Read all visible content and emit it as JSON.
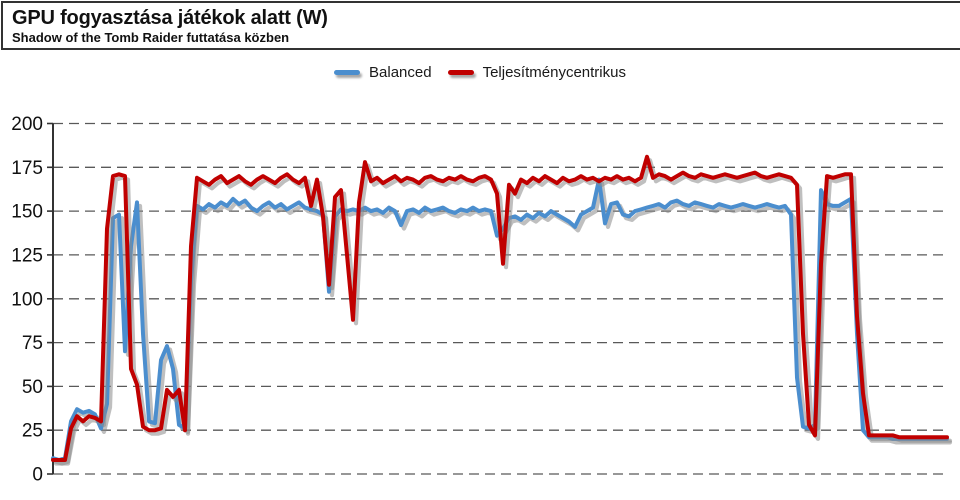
{
  "header": {
    "title": "GPU fogyasztása játékok alatt (W)",
    "subtitle": "Shadow of the Tomb Raider futtatása közben"
  },
  "legend": {
    "items": [
      {
        "label": "Balanced",
        "color": "#4B8ECE"
      },
      {
        "label": "Teljesítménycentrikus",
        "color": "#C00000"
      }
    ]
  },
  "colors": {
    "balanced": "#4B8ECE",
    "performance": "#C00000",
    "gridline": "#595959",
    "axis": "#333333",
    "shadow": "#8a8a8a"
  },
  "chart_data": {
    "type": "line",
    "title": "GPU fogyasztása játékok alatt (W)",
    "subtitle": "Shadow of the Tomb Raider futtatása közben",
    "xlabel": "",
    "ylabel": "",
    "ylim": [
      0,
      200
    ],
    "yticks": [
      0,
      25,
      50,
      75,
      100,
      125,
      150,
      175,
      200
    ],
    "xticks_visible": false,
    "grid": "horizontal-dashed",
    "legend_position": "top-center",
    "series": [
      {
        "name": "Balanced",
        "color": "#4B8ECE",
        "values": [
          9,
          8,
          9,
          30,
          37,
          35,
          36,
          34,
          26,
          40,
          146,
          148,
          70,
          130,
          155,
          80,
          30,
          29,
          65,
          73,
          60,
          28,
          26,
          110,
          153,
          151,
          154,
          152,
          155,
          153,
          157,
          154,
          156,
          152,
          150,
          153,
          155,
          152,
          154,
          151,
          153,
          155,
          152,
          151,
          150,
          148,
          104,
          147,
          151,
          150,
          151,
          150,
          152,
          150,
          151,
          149,
          152,
          150,
          142,
          150,
          151,
          149,
          152,
          150,
          151,
          152,
          150,
          149,
          151,
          150,
          152,
          150,
          151,
          150,
          136,
          140,
          146,
          147,
          145,
          148,
          146,
          149,
          147,
          150,
          148,
          146,
          144,
          141,
          148,
          150,
          152,
          168,
          143,
          154,
          155,
          148,
          147,
          150,
          151,
          152,
          153,
          154,
          152,
          155,
          156,
          154,
          153,
          155,
          154,
          153,
          152,
          154,
          153,
          152,
          153,
          154,
          153,
          152,
          153,
          154,
          153,
          152,
          153,
          148,
          55,
          27,
          26,
          28,
          162,
          154,
          153,
          153,
          155,
          157,
          80,
          25,
          21,
          21,
          21,
          21,
          20,
          20,
          20,
          20,
          20,
          20,
          20,
          20,
          20,
          20
        ]
      },
      {
        "name": "Teljesítménycentrikus",
        "color": "#C00000",
        "values": [
          8,
          8,
          8,
          26,
          33,
          30,
          33,
          32,
          30,
          140,
          170,
          171,
          170,
          60,
          51,
          27,
          25,
          25,
          26,
          48,
          44,
          48,
          25,
          130,
          169,
          167,
          165,
          168,
          170,
          166,
          168,
          170,
          167,
          165,
          168,
          170,
          168,
          166,
          169,
          171,
          168,
          166,
          169,
          153,
          168,
          147,
          108,
          158,
          162,
          125,
          88,
          155,
          178,
          167,
          169,
          166,
          168,
          170,
          167,
          169,
          168,
          166,
          169,
          170,
          168,
          167,
          169,
          168,
          170,
          168,
          167,
          169,
          170,
          168,
          160,
          120,
          165,
          160,
          168,
          166,
          169,
          167,
          170,
          168,
          166,
          169,
          167,
          168,
          170,
          168,
          169,
          167,
          169,
          168,
          170,
          168,
          169,
          167,
          169,
          181,
          169,
          171,
          170,
          168,
          170,
          172,
          170,
          169,
          171,
          170,
          169,
          170,
          171,
          170,
          169,
          170,
          171,
          172,
          170,
          169,
          170,
          171,
          170,
          169,
          165,
          80,
          28,
          22,
          120,
          170,
          169,
          170,
          171,
          171,
          90,
          46,
          22,
          22,
          22,
          22,
          22,
          21,
          21,
          21,
          21,
          21,
          21,
          21,
          21,
          21
        ]
      }
    ]
  }
}
